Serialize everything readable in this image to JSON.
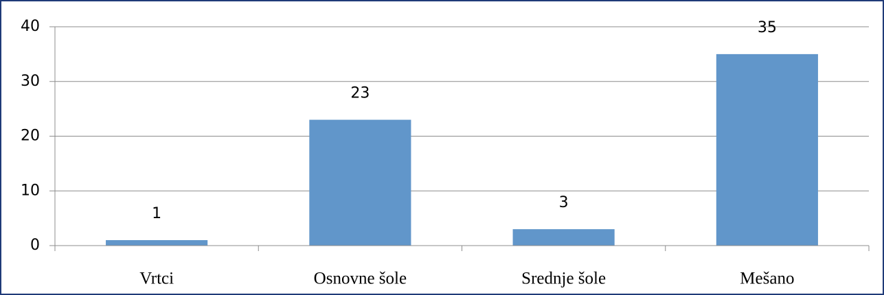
{
  "chart_data": {
    "type": "bar",
    "categories": [
      "Vrtci",
      "Osnovne šole",
      "Srednje šole",
      "Mešano"
    ],
    "values": [
      1,
      23,
      3,
      35
    ],
    "color": "#6196ca",
    "ylim": [
      0,
      40
    ],
    "yticks": [
      0,
      10,
      20,
      30,
      40
    ],
    "grid": true
  }
}
